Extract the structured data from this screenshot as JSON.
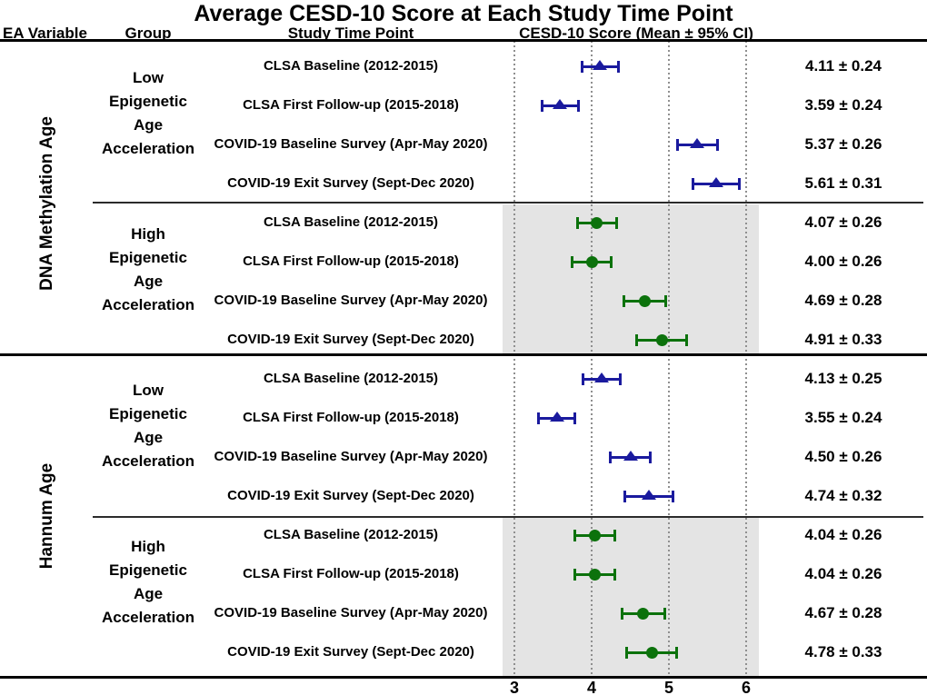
{
  "title": "Average CESD-10 Score at Each Study Time Point",
  "columns": {
    "ea_variable": "EA Variable",
    "group": "Group",
    "study_time_point": "Study Time Point",
    "score": "CESD-10 Score (Mean ± 95% CI)"
  },
  "colors": {
    "low_marker": "#1a1a9e",
    "high_marker": "#0c720c",
    "shaded_band": "#e4e4e4",
    "gridline": "#8f8f8f"
  },
  "chart_data": {
    "type": "forest",
    "title": "Average CESD-10 Score at Each Study Time Point",
    "x_axis": {
      "ticks": [
        3,
        4,
        5,
        6
      ],
      "xlim": [
        2.85,
        6.3
      ],
      "gridlines": "dotted"
    },
    "legend_position": "none",
    "sections": [
      {
        "ea_variable": "DNA Methylation Age",
        "groups": [
          {
            "name": "Low Epigenetic Age Acceleration",
            "name_lines": [
              "Low",
              "Epigenetic",
              "Age",
              "Acceleration"
            ],
            "marker": "triangle",
            "color": "#1a1a9e",
            "shaded": false,
            "rows": [
              {
                "label": "CLSA Baseline (2012-2015)",
                "mean": 4.11,
                "ci": 0.24,
                "value_text": "4.11 ± 0.24"
              },
              {
                "label": "CLSA First Follow-up (2015-2018)",
                "mean": 3.59,
                "ci": 0.24,
                "value_text": "3.59 ± 0.24"
              },
              {
                "label": "COVID-19 Baseline Survey (Apr-May 2020)",
                "mean": 5.37,
                "ci": 0.26,
                "value_text": "5.37 ± 0.26"
              },
              {
                "label": "COVID-19 Exit Survey (Sept-Dec 2020)",
                "mean": 5.61,
                "ci": 0.31,
                "value_text": "5.61 ± 0.31"
              }
            ]
          },
          {
            "name": "High Epigenetic Age Acceleration",
            "name_lines": [
              "High",
              "Epigenetic",
              "Age",
              "Acceleration"
            ],
            "marker": "circle",
            "color": "#0c720c",
            "shaded": true,
            "rows": [
              {
                "label": "CLSA Baseline (2012-2015)",
                "mean": 4.07,
                "ci": 0.26,
                "value_text": "4.07 ± 0.26"
              },
              {
                "label": "CLSA First Follow-up (2015-2018)",
                "mean": 4.0,
                "ci": 0.26,
                "value_text": "4.00 ± 0.26"
              },
              {
                "label": "COVID-19 Baseline Survey (Apr-May 2020)",
                "mean": 4.69,
                "ci": 0.28,
                "value_text": "4.69 ± 0.28"
              },
              {
                "label": "COVID-19 Exit Survey (Sept-Dec 2020)",
                "mean": 4.91,
                "ci": 0.33,
                "value_text": "4.91 ± 0.33"
              }
            ]
          }
        ]
      },
      {
        "ea_variable": "Hannum Age",
        "groups": [
          {
            "name": "Low Epigenetic Age Acceleration",
            "name_lines": [
              "Low",
              "Epigenetic",
              "Age",
              "Acceleration"
            ],
            "marker": "triangle",
            "color": "#1a1a9e",
            "shaded": false,
            "rows": [
              {
                "label": "CLSA Baseline (2012-2015)",
                "mean": 4.13,
                "ci": 0.25,
                "value_text": "4.13 ± 0.25"
              },
              {
                "label": "CLSA First Follow-up (2015-2018)",
                "mean": 3.55,
                "ci": 0.24,
                "value_text": "3.55 ± 0.24"
              },
              {
                "label": "COVID-19 Baseline Survey (Apr-May 2020)",
                "mean": 4.5,
                "ci": 0.26,
                "value_text": "4.50 ± 0.26"
              },
              {
                "label": "COVID-19 Exit Survey (Sept-Dec 2020)",
                "mean": 4.74,
                "ci": 0.32,
                "value_text": "4.74 ± 0.32"
              }
            ]
          },
          {
            "name": "High Epigenetic Age Acceleration",
            "name_lines": [
              "High",
              "Epigenetic",
              "Age",
              "Acceleration"
            ],
            "marker": "circle",
            "color": "#0c720c",
            "shaded": true,
            "rows": [
              {
                "label": "CLSA Baseline (2012-2015)",
                "mean": 4.04,
                "ci": 0.26,
                "value_text": "4.04 ± 0.26"
              },
              {
                "label": "CLSA First Follow-up (2015-2018)",
                "mean": 4.04,
                "ci": 0.26,
                "value_text": "4.04 ± 0.26"
              },
              {
                "label": "COVID-19 Baseline Survey (Apr-May 2020)",
                "mean": 4.67,
                "ci": 0.28,
                "value_text": "4.67 ± 0.28"
              },
              {
                "label": "COVID-19 Exit Survey (Sept-Dec 2020)",
                "mean": 4.78,
                "ci": 0.33,
                "value_text": "4.78 ± 0.33"
              }
            ]
          }
        ]
      }
    ]
  }
}
